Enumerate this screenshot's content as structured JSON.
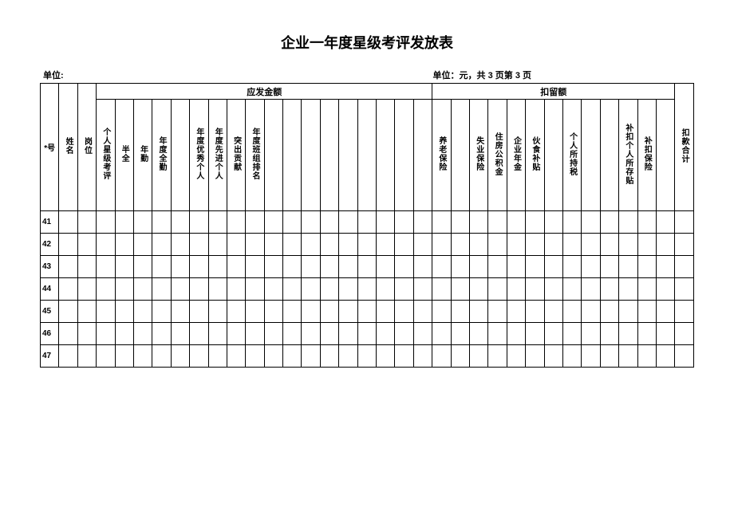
{
  "title": "企业一年度星级考评发放表",
  "meta": {
    "left": "单位:",
    "right": "单位：元，共 3 页第 3 页"
  },
  "groups": {
    "payable": "应发金额",
    "withhold": "扣留额"
  },
  "columns": {
    "serial": "*号",
    "name": "姓名",
    "post": "岗位",
    "personal_star": "个人星级考评",
    "half_full": "半全",
    "year_attend": "年勤",
    "year_full": "年度全勤",
    "year_excellent": "年度优秀个人",
    "year_advanced": "年度先进个人",
    "outstanding": "突出贡献",
    "year_team_rank": "年度班组排名",
    "pension": "养老保险",
    "unemploy": "失业保险",
    "housing": "住房公积金",
    "enterprise_annuity": "企业年金",
    "meal_subsidy": "伙食补贴",
    "income_tax": "个人所持税",
    "deduct_personal_deposit": "补扣个人所存贴",
    "deduct_insurance": "补扣保险",
    "deduct_total": "扣款合计"
  },
  "rows": [
    "41",
    "42",
    "43",
    "44",
    "45",
    "46",
    "47"
  ],
  "total_cols": 35,
  "payable_span": 18,
  "withhold_span": 13
}
